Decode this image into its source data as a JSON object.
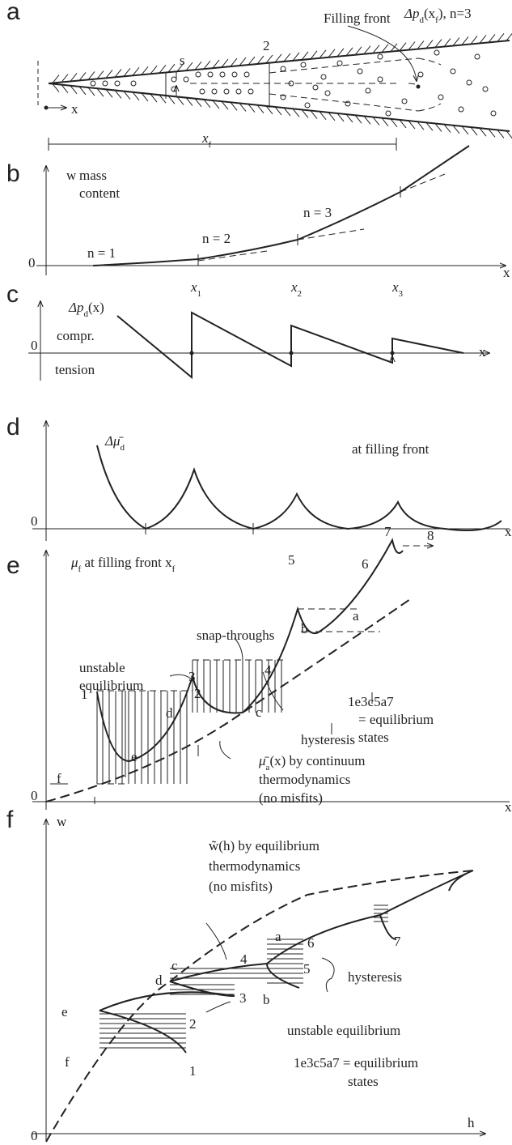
{
  "panels": [
    {
      "letter": "a",
      "labels": [
        "Filling front",
        [
          "Δp",
          "d",
          "(x",
          "f",
          "), n=3"
        ],
        "s",
        "2",
        "x",
        [
          "x",
          "f"
        ]
      ]
    },
    {
      "letter": "b",
      "labels": [
        "w",
        "mass",
        "content",
        "n = 1",
        "n = 2",
        "n = 3",
        "0",
        "x",
        [
          "x",
          "1"
        ],
        [
          "x",
          "2"
        ],
        [
          "x",
          "3"
        ]
      ]
    },
    {
      "letter": "c",
      "labels": [
        [
          "Δp",
          "d",
          "(x)"
        ],
        "compr.",
        "0",
        "tension",
        "x"
      ]
    },
    {
      "letter": "d",
      "labels": [
        [
          "Δμ̄",
          "d"
        ],
        "at filling front",
        "0",
        "x"
      ]
    },
    {
      "letter": "e",
      "labels": [
        [
          "μ",
          "f",
          " at filling front x",
          "f"
        ],
        "7",
        "8",
        "5",
        "6",
        "a",
        "b",
        "snap-throughs",
        "3",
        "4",
        "unstable",
        "equilibrium",
        "1",
        "2",
        "d",
        "c",
        "hysteresis",
        "1e3c5a7",
        "= equilibrium",
        "states",
        "f",
        "e",
        [
          "μ̄",
          "a",
          "(x) by continuum"
        ],
        "thermodynamics",
        "(no misfits)",
        "0",
        "x"
      ]
    },
    {
      "letter": "f",
      "labels": [
        "w",
        "w̃(h) by equilibrium",
        "thermodynamics",
        "(no misfits)",
        "6",
        "a",
        "7",
        "5",
        "hysteresis",
        "4",
        "b",
        "c",
        "d",
        "3",
        "unstable equilibrium",
        "2",
        "e",
        "1",
        "f",
        "1e3c5a7 = equilibrium",
        "states",
        "0",
        "h"
      ]
    }
  ]
}
